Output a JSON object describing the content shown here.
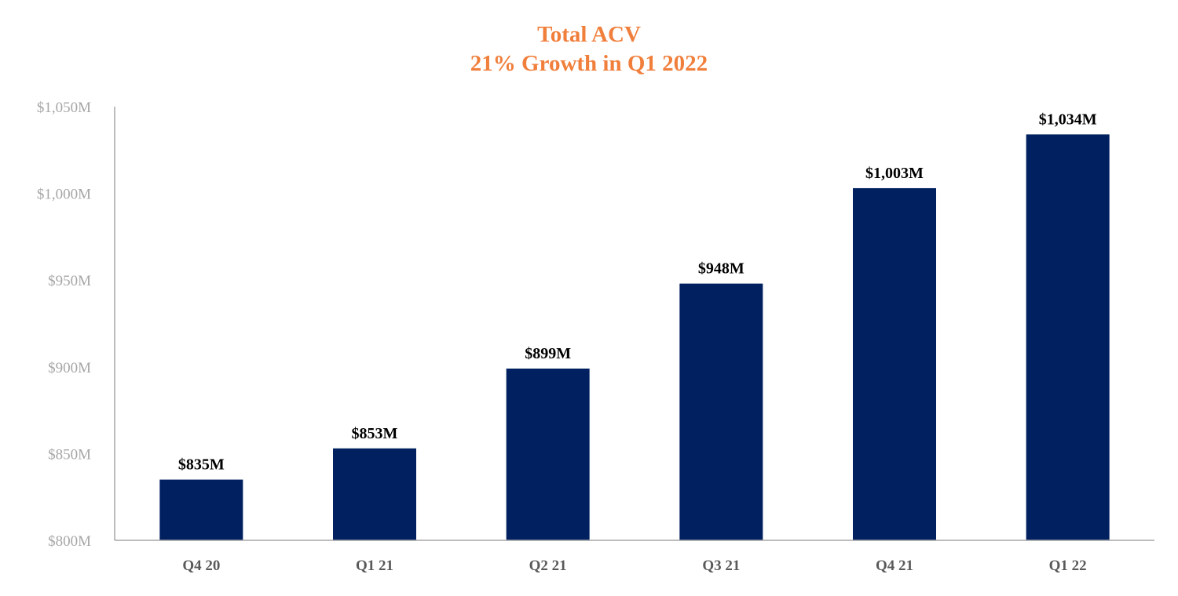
{
  "chart_data": {
    "type": "bar",
    "title": "Total ACV",
    "subtitle": "21% Growth in Q1 2022",
    "categories": [
      "Q4 20",
      "Q1 21",
      "Q2 21",
      "Q3 21",
      "Q4 21",
      "Q1 22"
    ],
    "values": [
      835,
      853,
      899,
      948,
      1003,
      1034
    ],
    "data_labels": [
      "$835M",
      "$853M",
      "$899M",
      "$948M",
      "$1,003M",
      "$1,034M"
    ],
    "ylim": [
      800,
      1050
    ],
    "y_ticks": [
      800,
      850,
      900,
      950,
      1000,
      1050
    ],
    "y_tick_labels": [
      "$800M",
      "$850M",
      "$900M",
      "$950M",
      "$1,000M",
      "$1,050M"
    ],
    "xlabel": "",
    "ylabel": "",
    "grid": false,
    "legend": "none",
    "colors": {
      "bar": "#002060",
      "title": "#f07f3c",
      "axis": "#a6a6a6",
      "y_tick_text": "#a6a6a6",
      "x_tick_text": "#595959",
      "data_label_text": "#000000"
    }
  }
}
